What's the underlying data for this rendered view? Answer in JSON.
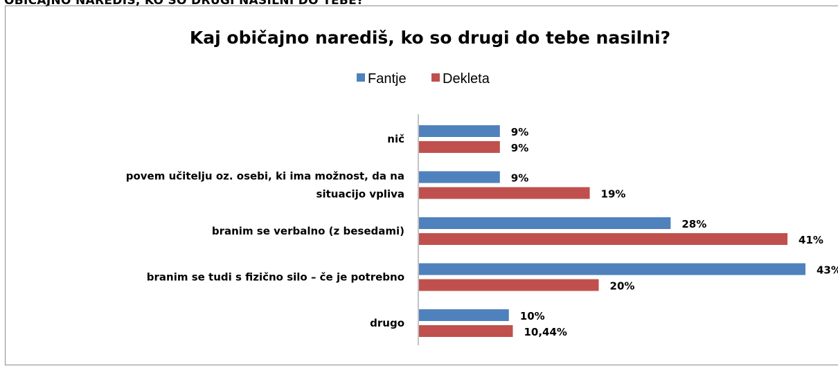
{
  "page": {
    "heading": "OBIČAJNO NAREDIŠ, KO SO DRUGI NASILNI DO TEBE?"
  },
  "colors": {
    "fantje": "#4f81bd",
    "dekleta": "#c0504d",
    "axis": "#868686",
    "frame": "#8c8c8c"
  },
  "chart_data": {
    "type": "bar",
    "orientation": "horizontal",
    "title": "Kaj običajno narediš, ko so drugi do tebe nasilni?",
    "legend_position": "top",
    "grid": false,
    "xlim": [
      0,
      0.43
    ],
    "categories": [
      [
        "nič"
      ],
      [
        "povem učitelju oz. osebi, ki ima možnost, da na",
        "situacijo vpliva"
      ],
      [
        "branim se verbalno (z besedami)"
      ],
      [
        "branim se tudi s fizično silo – če je potrebno"
      ],
      [
        "drugo"
      ]
    ],
    "series": [
      {
        "name": "Fantje",
        "color_key": "fantje",
        "values": [
          0.09,
          0.09,
          0.28,
          0.43,
          0.1
        ],
        "labels": [
          "9%",
          "9%",
          "28%",
          "43%",
          "10%"
        ]
      },
      {
        "name": "Dekleta",
        "color_key": "dekleta",
        "values": [
          0.09,
          0.19,
          0.41,
          0.2,
          0.1044
        ],
        "labels": [
          "9%",
          "19%",
          "41%",
          "20%",
          "10,44%"
        ]
      }
    ]
  }
}
